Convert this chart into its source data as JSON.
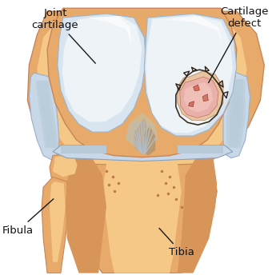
{
  "bg_color": "#ffffff",
  "bone_color": "#e8aa6a",
  "bone_shadow": "#d4956a",
  "bone_light": "#f5c888",
  "cartilage_color": "#d8e4ef",
  "cartilage_light": "#eef3f8",
  "cartilage_mid": "#c5d5e5",
  "capsule_color": "#c8d8e8",
  "ligament_color": "#b8c8d8",
  "defect_bone": "#e8c4a0",
  "defect_pink": "#e8a898",
  "defect_dark": "#8a7060",
  "line_color": "#1a1a1a",
  "text_color": "#111111",
  "label_joint_cartilage": "Joint\ncartilage",
  "label_cartilage_defect": "Cartilage\ndefect",
  "label_fibula": "Fibula",
  "label_tibia": "Tibia",
  "font_size": 9.5,
  "annotation_lw": 1.0
}
